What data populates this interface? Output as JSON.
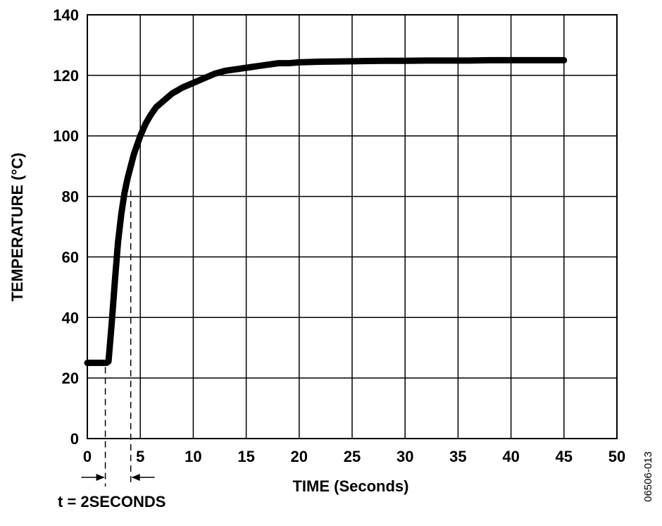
{
  "chart_data": {
    "type": "line",
    "title": "",
    "xlabel": "TIME (Seconds)",
    "ylabel": "TEMPERATURE (°C)",
    "xlim": [
      0,
      50
    ],
    "ylim": [
      0,
      140
    ],
    "x_ticks": [
      0,
      5,
      10,
      15,
      20,
      25,
      30,
      35,
      40,
      45,
      50
    ],
    "y_ticks": [
      0,
      20,
      40,
      60,
      80,
      100,
      120,
      140
    ],
    "grid": true,
    "legend": "none",
    "line_color": "#000000",
    "series": [
      {
        "name": "",
        "x": [
          0,
          0.5,
          1,
          1.5,
          1.8,
          2.0,
          2.3,
          2.6,
          2.9,
          3.2,
          3.5,
          3.8,
          4.1,
          4.4,
          4.7,
          5.0,
          5.5,
          6.0,
          6.5,
          7.0,
          8.0,
          9.0,
          10.0,
          11.0,
          12.0,
          13.0,
          14.0,
          15.0,
          16.0,
          17.0,
          18.0,
          19.0,
          20.0,
          22.0,
          24.0,
          26.0,
          28.0,
          30.0,
          32.0,
          34.0,
          36.0,
          38.0,
          40.0,
          42.0,
          44.0,
          45.0
        ],
        "y": [
          25,
          25,
          25,
          25,
          25,
          25.5,
          38,
          52,
          65,
          74,
          81,
          86,
          90,
          94,
          97,
          100,
          104,
          107,
          109.5,
          111,
          114,
          116,
          117.5,
          119,
          120.5,
          121.5,
          122,
          122.5,
          123,
          123.5,
          124,
          124,
          124.3,
          124.5,
          124.6,
          124.7,
          124.8,
          124.8,
          124.9,
          124.9,
          124.9,
          125,
          125,
          125,
          125,
          125
        ]
      }
    ],
    "annotations": {
      "interval_label": "t = 2SECONDS",
      "interval_start_x": 1.7,
      "interval_end_x": 4.1,
      "interval_end_y": 82
    }
  },
  "figure_id": "06506-013"
}
